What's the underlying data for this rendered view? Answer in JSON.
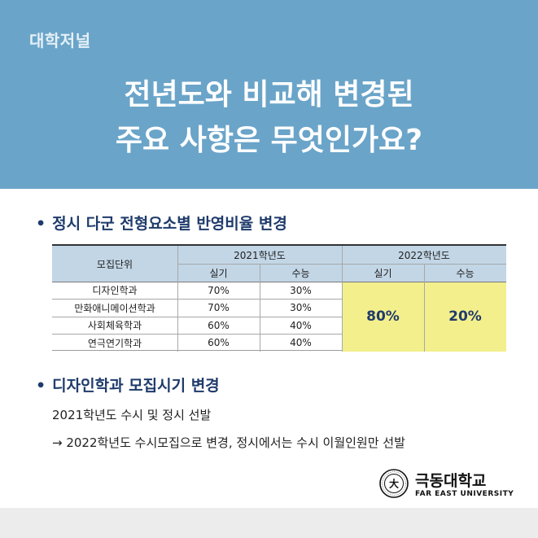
{
  "header": {
    "tag": "대학저널",
    "title_line1": "전년도와 비교해 변경된",
    "title_line2": "주요 사항은 무엇인가요?"
  },
  "section1": {
    "title": "정시 다군 전형요소별 반영비율 변경",
    "table": {
      "col_unit": "모집단위",
      "year_2021": "2021학년도",
      "year_2022": "2022학년도",
      "sub_practical": "실기",
      "sub_suneung": "수능",
      "rows": [
        {
          "unit": "디자인학과",
          "practical": "70%",
          "suneung": "30%"
        },
        {
          "unit": "만화애니메이션학과",
          "practical": "70%",
          "suneung": "30%"
        },
        {
          "unit": "사회체육학과",
          "practical": "60%",
          "suneung": "40%"
        },
        {
          "unit": "연극연기학과",
          "practical": "60%",
          "suneung": "40%"
        }
      ],
      "y2022_practical": "80%",
      "y2022_suneung": "20%"
    }
  },
  "section2": {
    "title": "디자인학과 모집시기 변경",
    "line1": "2021학년도 수시 및 정시 선발",
    "line2": "→ 2022학년도 수시모집으로 변경, 정시에서는 수시 이월인원만 선발"
  },
  "logo": {
    "name_ko": "극동대학교",
    "name_en": "FAR EAST UNIVERSITY",
    "seal_char": "大"
  },
  "colors": {
    "header_bg": "#6aa4c9",
    "table_head": "#c2d6e6",
    "highlight": "#f3ef8d",
    "title_navy": "#1f3b6b"
  }
}
